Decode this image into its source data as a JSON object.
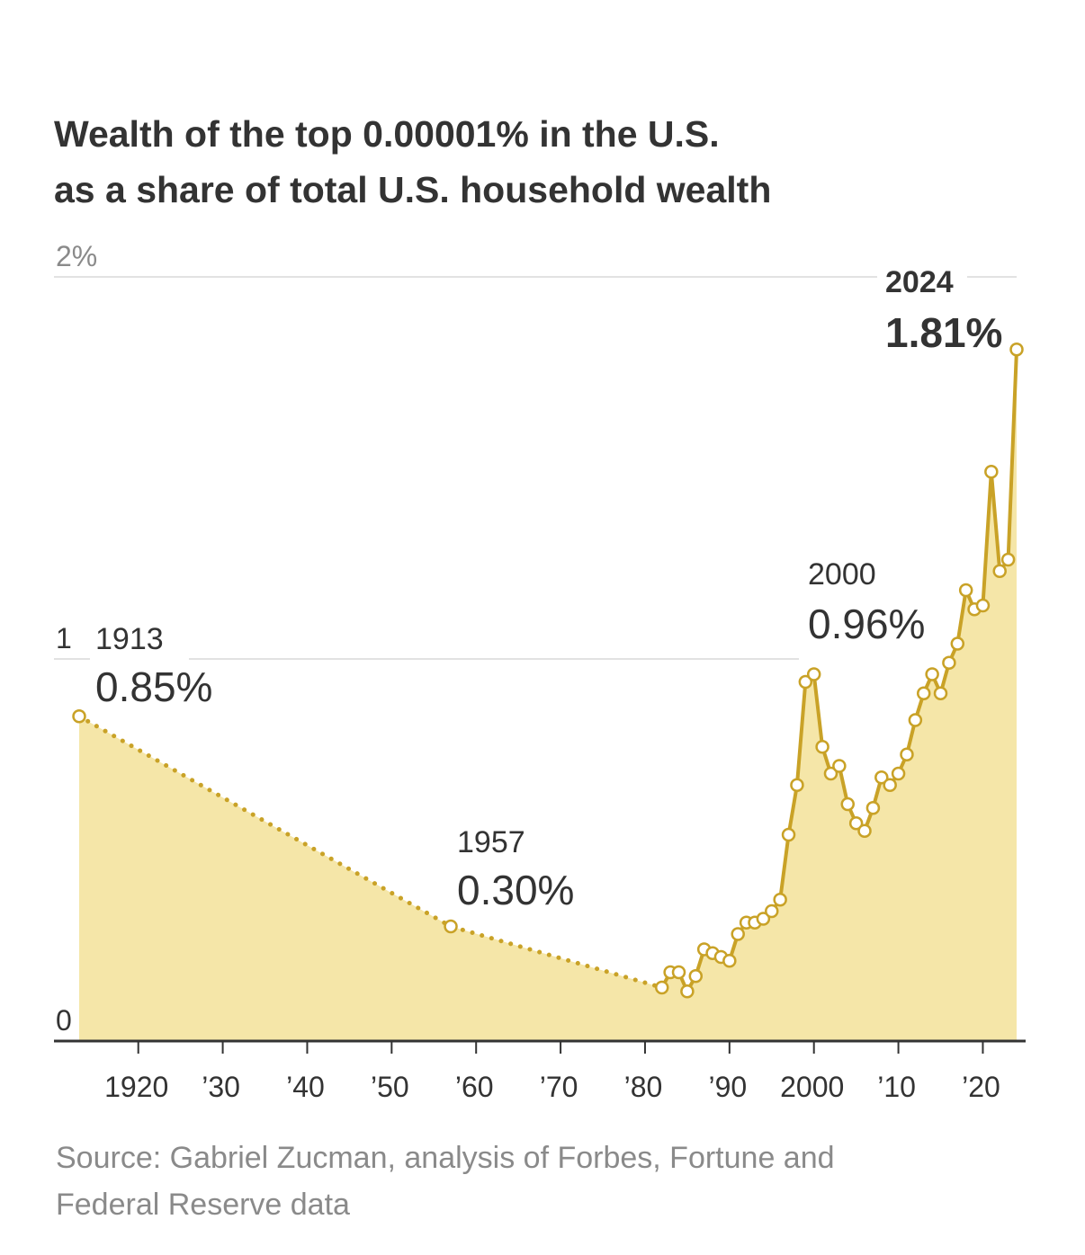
{
  "header": {
    "title_line1": "Wealth of the top 0.00001% in the U.S.",
    "title_line2": "as a share of total U.S. household wealth"
  },
  "footer": {
    "source_line1": "Source: Gabriel Zucman, analysis of Forbes, Fortune and",
    "source_line2": "Federal Reserve data"
  },
  "colors": {
    "line": "#c9a227",
    "fill": "#f5e6a8",
    "marker_fill": "#ffffff",
    "text_dark": "#333333",
    "text_muted": "#8a8a8a",
    "grid": "#e2e2e2",
    "axis": "#333333"
  },
  "chart_data": {
    "type": "line",
    "title": "Wealth of the top 0.00001% in the U.S. as a share of total U.S. household wealth",
    "ylabel": "",
    "xlabel": "",
    "xlim": [
      1913,
      2024
    ],
    "ylim": [
      0,
      2
    ],
    "grid": true,
    "y_ticks": [
      {
        "value": 0,
        "label": "0"
      },
      {
        "value": 1,
        "label": "1"
      },
      {
        "value": 2,
        "label": "2%"
      }
    ],
    "x_ticks": [
      {
        "value": 1920,
        "label": "1920"
      },
      {
        "value": 1930,
        "label": "’30"
      },
      {
        "value": 1940,
        "label": "’40"
      },
      {
        "value": 1950,
        "label": "’50"
      },
      {
        "value": 1960,
        "label": "’60"
      },
      {
        "value": 1970,
        "label": "’70"
      },
      {
        "value": 1980,
        "label": "’80"
      },
      {
        "value": 1990,
        "label": "’90"
      },
      {
        "value": 2000,
        "label": "2000"
      },
      {
        "value": 2010,
        "label": "’10"
      },
      {
        "value": 2020,
        "label": "’20"
      }
    ],
    "series": [
      {
        "style": "dotted",
        "x": [
          1913,
          1957,
          1982
        ],
        "y": [
          0.85,
          0.3,
          0.14
        ]
      },
      {
        "style": "solid",
        "x": [
          1982,
          1983,
          1984,
          1985,
          1986,
          1987,
          1988,
          1989,
          1990,
          1991,
          1992,
          1993,
          1994,
          1995,
          1996,
          1997,
          1998,
          1999,
          2000,
          2001,
          2002,
          2003,
          2004,
          2005,
          2006,
          2007,
          2008,
          2009,
          2010,
          2011,
          2012,
          2013,
          2014,
          2015,
          2016,
          2017,
          2018,
          2019,
          2020,
          2021,
          2022,
          2023,
          2024
        ],
        "y": [
          0.14,
          0.18,
          0.18,
          0.13,
          0.17,
          0.24,
          0.23,
          0.22,
          0.21,
          0.28,
          0.31,
          0.31,
          0.32,
          0.34,
          0.37,
          0.54,
          0.67,
          0.94,
          0.96,
          0.77,
          0.7,
          0.72,
          0.62,
          0.57,
          0.55,
          0.61,
          0.69,
          0.67,
          0.7,
          0.75,
          0.84,
          0.91,
          0.96,
          0.91,
          0.99,
          1.04,
          1.18,
          1.13,
          1.14,
          1.49,
          1.23,
          1.26,
          1.81
        ]
      }
    ],
    "annotations": [
      {
        "x": 1913,
        "y": 0.85,
        "year": "1913",
        "value": "0.85%",
        "style": "normal"
      },
      {
        "x": 1957,
        "y": 0.3,
        "year": "1957",
        "value": "0.30%",
        "style": "normal"
      },
      {
        "x": 2000,
        "y": 0.96,
        "year": "2000",
        "value": "0.96%",
        "style": "normal"
      },
      {
        "x": 2024,
        "y": 1.81,
        "year": "2024",
        "value": "1.81%",
        "style": "bold"
      }
    ]
  }
}
